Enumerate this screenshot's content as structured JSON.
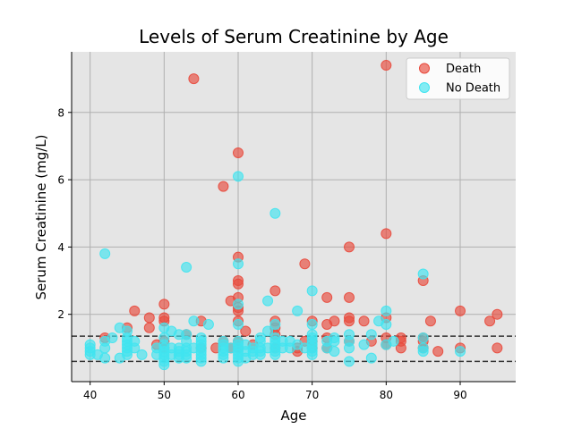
{
  "chart_data": {
    "type": "scatter",
    "title": "Levels of Serum Creatinine by Age",
    "xlabel": "Age",
    "ylabel": "Serum Creatinine (mg/L)",
    "xlim": [
      37.5,
      97.5
    ],
    "ylim": [
      0.0,
      9.8
    ],
    "x_ticks": [
      40,
      50,
      60,
      70,
      80,
      90
    ],
    "y_ticks": [
      2,
      4,
      6,
      8
    ],
    "grid": true,
    "legend_position": "upper-right",
    "reference_lines": [
      {
        "orientation": "horizontal",
        "y": 1.35,
        "style": "dashed",
        "color": "#333333"
      },
      {
        "orientation": "horizontal",
        "y": 0.6,
        "style": "dashed",
        "color": "#333333"
      }
    ],
    "series": [
      {
        "name": "Death",
        "color": "#e8493c",
        "points": [
          [
            42,
            1.3
          ],
          [
            45,
            1.6
          ],
          [
            46,
            2.1
          ],
          [
            48,
            1.9
          ],
          [
            48,
            1.6
          ],
          [
            49,
            1.1
          ],
          [
            50,
            2.3
          ],
          [
            50,
            1.9
          ],
          [
            50,
            1.8
          ],
          [
            50,
            1.2
          ],
          [
            50,
            1.0
          ],
          [
            53,
            1.4
          ],
          [
            54,
            9.0
          ],
          [
            55,
            1.8
          ],
          [
            55,
            1.0
          ],
          [
            57,
            1.0
          ],
          [
            58,
            5.8
          ],
          [
            58,
            1.2
          ],
          [
            59,
            2.4
          ],
          [
            59,
            1.0
          ],
          [
            60,
            6.8
          ],
          [
            60,
            3.7
          ],
          [
            60,
            3.0
          ],
          [
            60,
            2.9
          ],
          [
            60,
            2.5
          ],
          [
            60,
            2.2
          ],
          [
            60,
            2.1
          ],
          [
            60,
            1.8
          ],
          [
            60,
            1.2
          ],
          [
            60,
            1.0
          ],
          [
            61,
            1.5
          ],
          [
            62,
            1.1
          ],
          [
            65,
            2.7
          ],
          [
            65,
            1.8
          ],
          [
            65,
            1.6
          ],
          [
            65,
            1.4
          ],
          [
            65,
            1.0
          ],
          [
            68,
            1.0
          ],
          [
            68,
            0.9
          ],
          [
            69,
            3.5
          ],
          [
            69,
            1.2
          ],
          [
            70,
            1.8
          ],
          [
            70,
            1.2
          ],
          [
            70,
            1.0
          ],
          [
            72,
            2.5
          ],
          [
            72,
            1.7
          ],
          [
            72,
            1.3
          ],
          [
            72,
            1.0
          ],
          [
            73,
            1.8
          ],
          [
            75,
            4.0
          ],
          [
            75,
            2.5
          ],
          [
            75,
            1.9
          ],
          [
            75,
            1.8
          ],
          [
            75,
            1.2
          ],
          [
            77,
            1.8
          ],
          [
            78,
            1.2
          ],
          [
            80,
            9.4
          ],
          [
            80,
            4.4
          ],
          [
            80,
            1.9
          ],
          [
            80,
            1.3
          ],
          [
            80,
            1.1
          ],
          [
            82,
            1.3
          ],
          [
            82,
            1.2
          ],
          [
            82,
            1.0
          ],
          [
            85,
            3.0
          ],
          [
            85,
            1.3
          ],
          [
            85,
            1.2
          ],
          [
            85,
            1.0
          ],
          [
            86,
            1.8
          ],
          [
            87,
            0.9
          ],
          [
            90,
            2.1
          ],
          [
            90,
            1.0
          ],
          [
            94,
            1.8
          ],
          [
            95,
            2.0
          ],
          [
            95,
            1.0
          ]
        ]
      },
      {
        "name": "No Death",
        "color": "#40e4f0",
        "points": [
          [
            40,
            1.1
          ],
          [
            40,
            1.0
          ],
          [
            40,
            0.9
          ],
          [
            40,
            0.8
          ],
          [
            41,
            0.8
          ],
          [
            42,
            3.8
          ],
          [
            42,
            1.2
          ],
          [
            42,
            1.0
          ],
          [
            42,
            0.7
          ],
          [
            43,
            1.3
          ],
          [
            44,
            1.6
          ],
          [
            44,
            0.7
          ],
          [
            45,
            1.5
          ],
          [
            45,
            1.3
          ],
          [
            45,
            1.2
          ],
          [
            45,
            1.1
          ],
          [
            45,
            1.0
          ],
          [
            45,
            0.9
          ],
          [
            45,
            0.8
          ],
          [
            46,
            1.2
          ],
          [
            46,
            1.0
          ],
          [
            47,
            0.8
          ],
          [
            49,
            1.0
          ],
          [
            49,
            0.8
          ],
          [
            50,
            1.6
          ],
          [
            50,
            1.3
          ],
          [
            50,
            1.1
          ],
          [
            50,
            1.0
          ],
          [
            50,
            0.9
          ],
          [
            50,
            0.8
          ],
          [
            50,
            0.7
          ],
          [
            50,
            0.6
          ],
          [
            50,
            0.5
          ],
          [
            51,
            1.5
          ],
          [
            51,
            1.0
          ],
          [
            51,
            0.8
          ],
          [
            52,
            1.4
          ],
          [
            52,
            1.0
          ],
          [
            52,
            0.9
          ],
          [
            52,
            0.8
          ],
          [
            52,
            0.7
          ],
          [
            53,
            3.4
          ],
          [
            53,
            1.4
          ],
          [
            53,
            1.2
          ],
          [
            53,
            1.0
          ],
          [
            53,
            0.9
          ],
          [
            53,
            0.8
          ],
          [
            53,
            0.7
          ],
          [
            54,
            1.8
          ],
          [
            54,
            1.0
          ],
          [
            55,
            1.3
          ],
          [
            55,
            1.2
          ],
          [
            55,
            1.1
          ],
          [
            55,
            1.0
          ],
          [
            55,
            0.9
          ],
          [
            55,
            0.8
          ],
          [
            55,
            0.7
          ],
          [
            55,
            0.6
          ],
          [
            56,
            1.7
          ],
          [
            58,
            1.2
          ],
          [
            58,
            1.1
          ],
          [
            58,
            1.0
          ],
          [
            58,
            0.9
          ],
          [
            58,
            0.8
          ],
          [
            58,
            0.7
          ],
          [
            59,
            1.0
          ],
          [
            60,
            6.1
          ],
          [
            60,
            3.5
          ],
          [
            60,
            2.3
          ],
          [
            60,
            1.7
          ],
          [
            60,
            1.2
          ],
          [
            60,
            1.1
          ],
          [
            60,
            1.0
          ],
          [
            60,
            0.9
          ],
          [
            60,
            0.8
          ],
          [
            60,
            0.7
          ],
          [
            60,
            0.6
          ],
          [
            61,
            1.1
          ],
          [
            61,
            0.9
          ],
          [
            61,
            0.7
          ],
          [
            62,
            1.0
          ],
          [
            62,
            0.9
          ],
          [
            62,
            0.8
          ],
          [
            63,
            1.3
          ],
          [
            63,
            1.2
          ],
          [
            63,
            1.0
          ],
          [
            63,
            0.9
          ],
          [
            63,
            0.8
          ],
          [
            64,
            2.4
          ],
          [
            64,
            1.5
          ],
          [
            64,
            1.0
          ],
          [
            65,
            5.0
          ],
          [
            65,
            1.7
          ],
          [
            65,
            1.3
          ],
          [
            65,
            1.2
          ],
          [
            65,
            1.1
          ],
          [
            65,
            1.0
          ],
          [
            65,
            0.9
          ],
          [
            65,
            0.8
          ],
          [
            66,
            1.2
          ],
          [
            66,
            1.0
          ],
          [
            67,
            1.2
          ],
          [
            67,
            1.0
          ],
          [
            68,
            2.1
          ],
          [
            68,
            1.1
          ],
          [
            69,
            1.0
          ],
          [
            70,
            2.7
          ],
          [
            70,
            1.7
          ],
          [
            70,
            1.4
          ],
          [
            70,
            1.3
          ],
          [
            70,
            1.2
          ],
          [
            70,
            1.1
          ],
          [
            70,
            1.0
          ],
          [
            70,
            0.9
          ],
          [
            70,
            0.8
          ],
          [
            72,
            1.2
          ],
          [
            72,
            1.0
          ],
          [
            73,
            1.3
          ],
          [
            73,
            1.2
          ],
          [
            73,
            0.9
          ],
          [
            75,
            1.4
          ],
          [
            75,
            1.2
          ],
          [
            75,
            1.0
          ],
          [
            75,
            0.6
          ],
          [
            77,
            1.1
          ],
          [
            78,
            1.4
          ],
          [
            78,
            0.7
          ],
          [
            79,
            1.8
          ],
          [
            80,
            2.1
          ],
          [
            80,
            1.7
          ],
          [
            80,
            1.1
          ],
          [
            81,
            1.2
          ],
          [
            85,
            3.2
          ],
          [
            85,
            1.3
          ],
          [
            85,
            1.0
          ],
          [
            85,
            0.9
          ],
          [
            90,
            0.9
          ]
        ]
      }
    ]
  }
}
